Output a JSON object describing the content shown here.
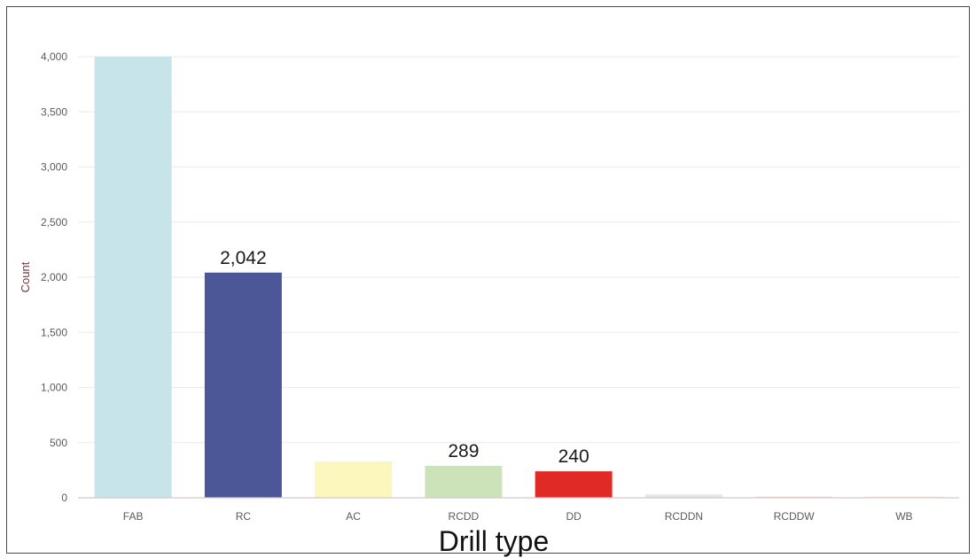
{
  "chart_data": {
    "type": "bar",
    "categories": [
      "FAB",
      "RC",
      "AC",
      "RCDD",
      "DD",
      "RCDDN",
      "RCDDW",
      "WB"
    ],
    "values": [
      4000,
      2042,
      330,
      289,
      240,
      30,
      8,
      4
    ],
    "colors": [
      "#c6e4ea",
      "#4b5796",
      "#fbf7bd",
      "#cce3b9",
      "#e02a25",
      "#e6e6e6",
      "#f4e1e1",
      "#f6efe6"
    ],
    "data_labels": {
      "1": "2,042",
      "3": "289",
      "4": "240"
    },
    "xlabel": "Drill type",
    "ylabel": "Count",
    "ylim": [
      0,
      4000
    ],
    "yticks": [
      0,
      500,
      1000,
      1500,
      2000,
      2500,
      3000,
      3500,
      4000
    ],
    "ytick_labels": [
      "0",
      "500",
      "1,000",
      "1,500",
      "2,000",
      "2,500",
      "3,000",
      "3,500",
      "4,000"
    ],
    "grid": true,
    "legend": "none"
  }
}
